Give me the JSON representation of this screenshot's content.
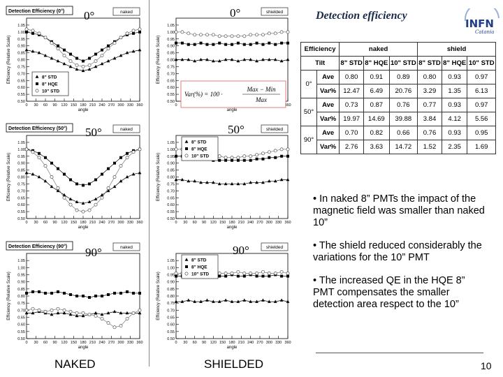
{
  "slide": {
    "title": "Detection efficiency",
    "footer_left": "NAKED",
    "footer_right": "SHIELDED",
    "page_number": "10",
    "bullets": [
      "• In naked 8” PMTs the impact of the magnetic field was smaller than naked 10”",
      "• The shield reduced considerably the variations for the 10” PMT",
      "• The increased QE in the HQE 8” PMT compensates the smaller detection area respect to the 10”"
    ],
    "logo": {
      "text": "INFN",
      "sub": "Catania",
      "color": "#1f3d8a"
    }
  },
  "angle_tags": {
    "a0_naked": "0°",
    "a0_shield": "0°",
    "a50_naked": "50°",
    "a50_shield": "50°",
    "a90_naked": "90°",
    "a90_shield": "90°"
  },
  "chart_data": [
    {
      "type": "line",
      "id": "naked-0",
      "title": "Detection Efficiency (0°)",
      "badge": "naked",
      "xlabel": "angle",
      "ylabel": "Efficiency (Relative Scale)",
      "xlim": [
        0,
        360
      ],
      "ylim": [
        0.5,
        1.1
      ],
      "xticks": [
        0,
        30,
        60,
        90,
        120,
        150,
        180,
        210,
        240,
        270,
        300,
        330,
        360
      ],
      "yticks": [
        0.5,
        0.55,
        0.6,
        0.65,
        0.7,
        0.75,
        0.8,
        0.85,
        0.9,
        0.95,
        1.0,
        1.05
      ],
      "x": [
        0,
        20,
        40,
        60,
        80,
        100,
        120,
        140,
        160,
        180,
        200,
        220,
        240,
        260,
        280,
        300,
        320,
        340,
        360
      ],
      "series": [
        {
          "name": "8\" STD",
          "marker": "triangle",
          "values": [
            0.87,
            0.86,
            0.85,
            0.83,
            0.81,
            0.79,
            0.77,
            0.75,
            0.73,
            0.72,
            0.73,
            0.75,
            0.77,
            0.79,
            0.81,
            0.83,
            0.85,
            0.86,
            0.87
          ]
        },
        {
          "name": "8\" HQE",
          "marker": "square",
          "values": [
            1.0,
            0.99,
            0.98,
            0.96,
            0.93,
            0.9,
            0.87,
            0.84,
            0.81,
            0.79,
            0.81,
            0.84,
            0.87,
            0.9,
            0.93,
            0.96,
            0.98,
            0.99,
            1.0
          ]
        },
        {
          "name": "10\" STD",
          "marker": "circle",
          "values": [
            1.02,
            1.01,
            0.99,
            0.96,
            0.92,
            0.88,
            0.83,
            0.79,
            0.76,
            0.75,
            0.76,
            0.79,
            0.83,
            0.88,
            0.92,
            0.96,
            0.99,
            1.01,
            1.02
          ]
        }
      ],
      "legend": "bottom-left",
      "grid": false
    },
    {
      "type": "line",
      "id": "shield-0",
      "title": "",
      "badge": "shielded",
      "xlabel": "angle",
      "ylabel": "Efficiency (Relative Scale)",
      "xlim": [
        0,
        360
      ],
      "ylim": [
        0.5,
        1.1
      ],
      "xticks": [
        0,
        30,
        60,
        90,
        120,
        150,
        180,
        210,
        240,
        270,
        300,
        330,
        360
      ],
      "yticks": [
        0.5,
        0.55,
        0.6,
        0.65,
        0.7,
        0.75,
        0.8,
        0.85,
        0.9,
        0.95,
        1.0,
        1.05
      ],
      "x": [
        0,
        20,
        40,
        60,
        80,
        100,
        120,
        140,
        160,
        180,
        200,
        220,
        240,
        260,
        280,
        300,
        320,
        340,
        360
      ],
      "series": [
        {
          "name": "8\" STD",
          "marker": "triangle",
          "values": [
            0.8,
            0.8,
            0.8,
            0.79,
            0.8,
            0.8,
            0.79,
            0.79,
            0.8,
            0.8,
            0.79,
            0.8,
            0.8,
            0.79,
            0.8,
            0.8,
            0.8,
            0.79,
            0.8
          ]
        },
        {
          "name": "8\" HQE",
          "marker": "square",
          "values": [
            0.92,
            0.92,
            0.91,
            0.91,
            0.92,
            0.91,
            0.91,
            0.92,
            0.91,
            0.91,
            0.92,
            0.91,
            0.91,
            0.92,
            0.91,
            0.92,
            0.91,
            0.92,
            0.92
          ]
        },
        {
          "name": "10\" STD",
          "marker": "circle",
          "values": [
            1.0,
            1.0,
            0.99,
            0.98,
            0.98,
            0.98,
            0.98,
            0.97,
            0.97,
            0.97,
            0.97,
            0.97,
            0.98,
            0.98,
            0.98,
            0.99,
            0.99,
            1.0,
            1.0
          ]
        }
      ],
      "legend": "none",
      "grid": false,
      "formula": {
        "lhs": "Var(%) = 100 ·",
        "num": "Max − Min",
        "den": "Max"
      }
    },
    {
      "type": "line",
      "id": "naked-50",
      "title": "Detection Efficiency (50°)",
      "badge": "naked",
      "xlabel": "angle",
      "ylabel": "Efficiency (Relative Scale)",
      "xlim": [
        0,
        360
      ],
      "ylim": [
        0.5,
        1.1
      ],
      "xticks": [
        0,
        30,
        60,
        90,
        120,
        150,
        180,
        210,
        240,
        270,
        300,
        330,
        360
      ],
      "yticks": [
        0.5,
        0.55,
        0.6,
        0.65,
        0.7,
        0.75,
        0.8,
        0.85,
        0.9,
        0.95,
        1.0,
        1.05
      ],
      "x": [
        0,
        20,
        40,
        60,
        80,
        100,
        120,
        140,
        160,
        180,
        200,
        220,
        240,
        260,
        280,
        300,
        320,
        340,
        360
      ],
      "series": [
        {
          "name": "8\" STD",
          "marker": "triangle",
          "values": [
            0.83,
            0.82,
            0.8,
            0.77,
            0.73,
            0.7,
            0.67,
            0.64,
            0.62,
            0.61,
            0.62,
            0.64,
            0.67,
            0.7,
            0.73,
            0.77,
            0.8,
            0.82,
            0.83
          ]
        },
        {
          "name": "8\" HQE",
          "marker": "square",
          "values": [
            1.0,
            0.99,
            0.97,
            0.94,
            0.9,
            0.86,
            0.82,
            0.78,
            0.75,
            0.74,
            0.75,
            0.78,
            0.82,
            0.86,
            0.9,
            0.94,
            0.97,
            0.99,
            1.0
          ]
        },
        {
          "name": "10\" STD",
          "marker": "circle",
          "values": [
            1.0,
            0.98,
            0.94,
            0.88,
            0.8,
            0.72,
            0.65,
            0.6,
            0.56,
            0.55,
            0.56,
            0.6,
            0.65,
            0.72,
            0.8,
            0.88,
            0.94,
            0.98,
            1.0
          ]
        }
      ],
      "legend": "none",
      "grid": false
    },
    {
      "type": "line",
      "id": "shield-50",
      "title": "",
      "badge": "shielded",
      "xlabel": "angle",
      "ylabel": "Efficiency (Relative Scale)",
      "xlim": [
        0,
        360
      ],
      "ylim": [
        0.5,
        1.1
      ],
      "xticks": [
        0,
        30,
        60,
        90,
        120,
        150,
        180,
        210,
        240,
        270,
        300,
        330,
        360
      ],
      "yticks": [
        0.5,
        0.55,
        0.6,
        0.65,
        0.7,
        0.75,
        0.8,
        0.85,
        0.9,
        0.95,
        1.0,
        1.05
      ],
      "x": [
        0,
        20,
        40,
        60,
        80,
        100,
        120,
        140,
        160,
        180,
        200,
        220,
        240,
        260,
        280,
        300,
        320,
        340,
        360
      ],
      "series": [
        {
          "name": "8\" STD",
          "marker": "triangle",
          "values": [
            0.78,
            0.78,
            0.77,
            0.77,
            0.76,
            0.76,
            0.76,
            0.75,
            0.75,
            0.75,
            0.75,
            0.75,
            0.76,
            0.76,
            0.76,
            0.77,
            0.77,
            0.78,
            0.78
          ]
        },
        {
          "name": "8\" HQE",
          "marker": "square",
          "values": [
            0.95,
            0.95,
            0.94,
            0.94,
            0.93,
            0.93,
            0.92,
            0.92,
            0.92,
            0.92,
            0.92,
            0.92,
            0.92,
            0.93,
            0.93,
            0.94,
            0.94,
            0.95,
            0.95
          ]
        },
        {
          "name": "10\" STD",
          "marker": "circle",
          "values": [
            1.0,
            1.0,
            0.99,
            0.98,
            0.97,
            0.96,
            0.95,
            0.95,
            0.94,
            0.94,
            0.94,
            0.95,
            0.95,
            0.96,
            0.97,
            0.98,
            0.99,
            1.0,
            1.0
          ]
        }
      ],
      "legend": "top-left",
      "grid": false
    },
    {
      "type": "line",
      "id": "naked-90",
      "title": "Detection Efficiency (90°)",
      "badge": "naked",
      "xlabel": "angle",
      "ylabel": "Efficiency (Relative Scale)",
      "xlim": [
        0,
        360
      ],
      "ylim": [
        0.5,
        1.1
      ],
      "xticks": [
        0,
        30,
        60,
        90,
        120,
        150,
        180,
        210,
        240,
        270,
        300,
        330,
        360
      ],
      "yticks": [
        0.5,
        0.55,
        0.6,
        0.65,
        0.7,
        0.75,
        0.8,
        0.85,
        0.9,
        0.95,
        1.0,
        1.05
      ],
      "x": [
        0,
        20,
        40,
        60,
        80,
        100,
        120,
        140,
        160,
        180,
        200,
        220,
        240,
        260,
        280,
        300,
        320,
        340,
        360
      ],
      "series": [
        {
          "name": "8\" STD",
          "marker": "triangle",
          "values": [
            0.68,
            0.68,
            0.69,
            0.68,
            0.67,
            0.68,
            0.68,
            0.67,
            0.66,
            0.66,
            0.67,
            0.68,
            0.67,
            0.68,
            0.69,
            0.68,
            0.68,
            0.68,
            0.68
          ]
        },
        {
          "name": "8\" HQE",
          "marker": "square",
          "values": [
            0.82,
            0.83,
            0.83,
            0.82,
            0.82,
            0.83,
            0.82,
            0.81,
            0.8,
            0.8,
            0.79,
            0.8,
            0.8,
            0.81,
            0.82,
            0.82,
            0.83,
            0.82,
            0.82
          ]
        },
        {
          "name": "10\" STD",
          "marker": "circle",
          "values": [
            0.7,
            0.71,
            0.7,
            0.69,
            0.7,
            0.71,
            0.7,
            0.69,
            0.68,
            0.68,
            0.67,
            0.66,
            0.64,
            0.61,
            0.58,
            0.59,
            0.64,
            0.68,
            0.7
          ]
        }
      ],
      "legend": "none",
      "grid": false
    },
    {
      "type": "line",
      "id": "shield-90",
      "title": "",
      "badge": "shielded",
      "xlabel": "angle",
      "ylabel": "Efficiency (Relative Scale)",
      "xlim": [
        0,
        360
      ],
      "ylim": [
        0.5,
        1.1
      ],
      "xticks": [
        0,
        30,
        60,
        90,
        120,
        150,
        180,
        210,
        240,
        270,
        300,
        330,
        360
      ],
      "yticks": [
        0.5,
        0.55,
        0.6,
        0.65,
        0.7,
        0.75,
        0.8,
        0.85,
        0.9,
        0.95,
        1.0,
        1.05
      ],
      "x": [
        0,
        20,
        40,
        60,
        80,
        100,
        120,
        140,
        160,
        180,
        200,
        220,
        240,
        260,
        280,
        300,
        320,
        340,
        360
      ],
      "series": [
        {
          "name": "8\" STD",
          "marker": "triangle",
          "values": [
            0.76,
            0.76,
            0.77,
            0.76,
            0.76,
            0.77,
            0.76,
            0.76,
            0.77,
            0.76,
            0.76,
            0.77,
            0.76,
            0.76,
            0.77,
            0.76,
            0.76,
            0.77,
            0.76
          ]
        },
        {
          "name": "8\" HQE",
          "marker": "square",
          "values": [
            0.94,
            0.94,
            0.95,
            0.94,
            0.94,
            0.95,
            0.94,
            0.94,
            0.94,
            0.95,
            0.94,
            0.94,
            0.95,
            0.94,
            0.94,
            0.94,
            0.95,
            0.94,
            0.94
          ]
        },
        {
          "name": "10\" STD",
          "marker": "circle",
          "values": [
            0.96,
            0.96,
            0.97,
            0.96,
            0.96,
            0.96,
            0.97,
            0.96,
            0.96,
            0.96,
            0.97,
            0.96,
            0.96,
            0.96,
            0.97,
            0.96,
            0.96,
            0.97,
            0.96
          ]
        }
      ],
      "legend": "top-left",
      "grid": false
    },
    {
      "type": "table",
      "id": "efficiency-table",
      "header": [
        "Efficiency",
        "naked",
        "shield"
      ],
      "tilt_label": "Tilt",
      "columns": [
        "8\" STD",
        "8\" HQE",
        "10\" STD",
        "8\" STD",
        "8\" HQE",
        "10\" STD"
      ],
      "rows": [
        {
          "tilt": "0°",
          "stat": "Ave",
          "values": [
            "0.80",
            "0.91",
            "0.89",
            "0.80",
            "0.93",
            "0.97"
          ]
        },
        {
          "tilt": "",
          "stat": "Var%",
          "values": [
            "12.47",
            "6.49",
            "20.76",
            "3.29",
            "1.35",
            "6.13"
          ]
        },
        {
          "tilt": "50°",
          "stat": "Ave",
          "values": [
            "0.73",
            "0.87",
            "0.76",
            "0.77",
            "0.93",
            "0.97"
          ]
        },
        {
          "tilt": "",
          "stat": "Var%",
          "values": [
            "19.97",
            "14.69",
            "39.88",
            "3.84",
            "4.12",
            "5.56"
          ]
        },
        {
          "tilt": "90°",
          "stat": "Ave",
          "values": [
            "0.70",
            "0.82",
            "0.66",
            "0.76",
            "0.93",
            "0.95"
          ]
        },
        {
          "tilt": "",
          "stat": "Var%",
          "values": [
            "2.76",
            "3.63",
            "14.72",
            "1.52",
            "2.35",
            "1.69"
          ]
        }
      ]
    }
  ]
}
